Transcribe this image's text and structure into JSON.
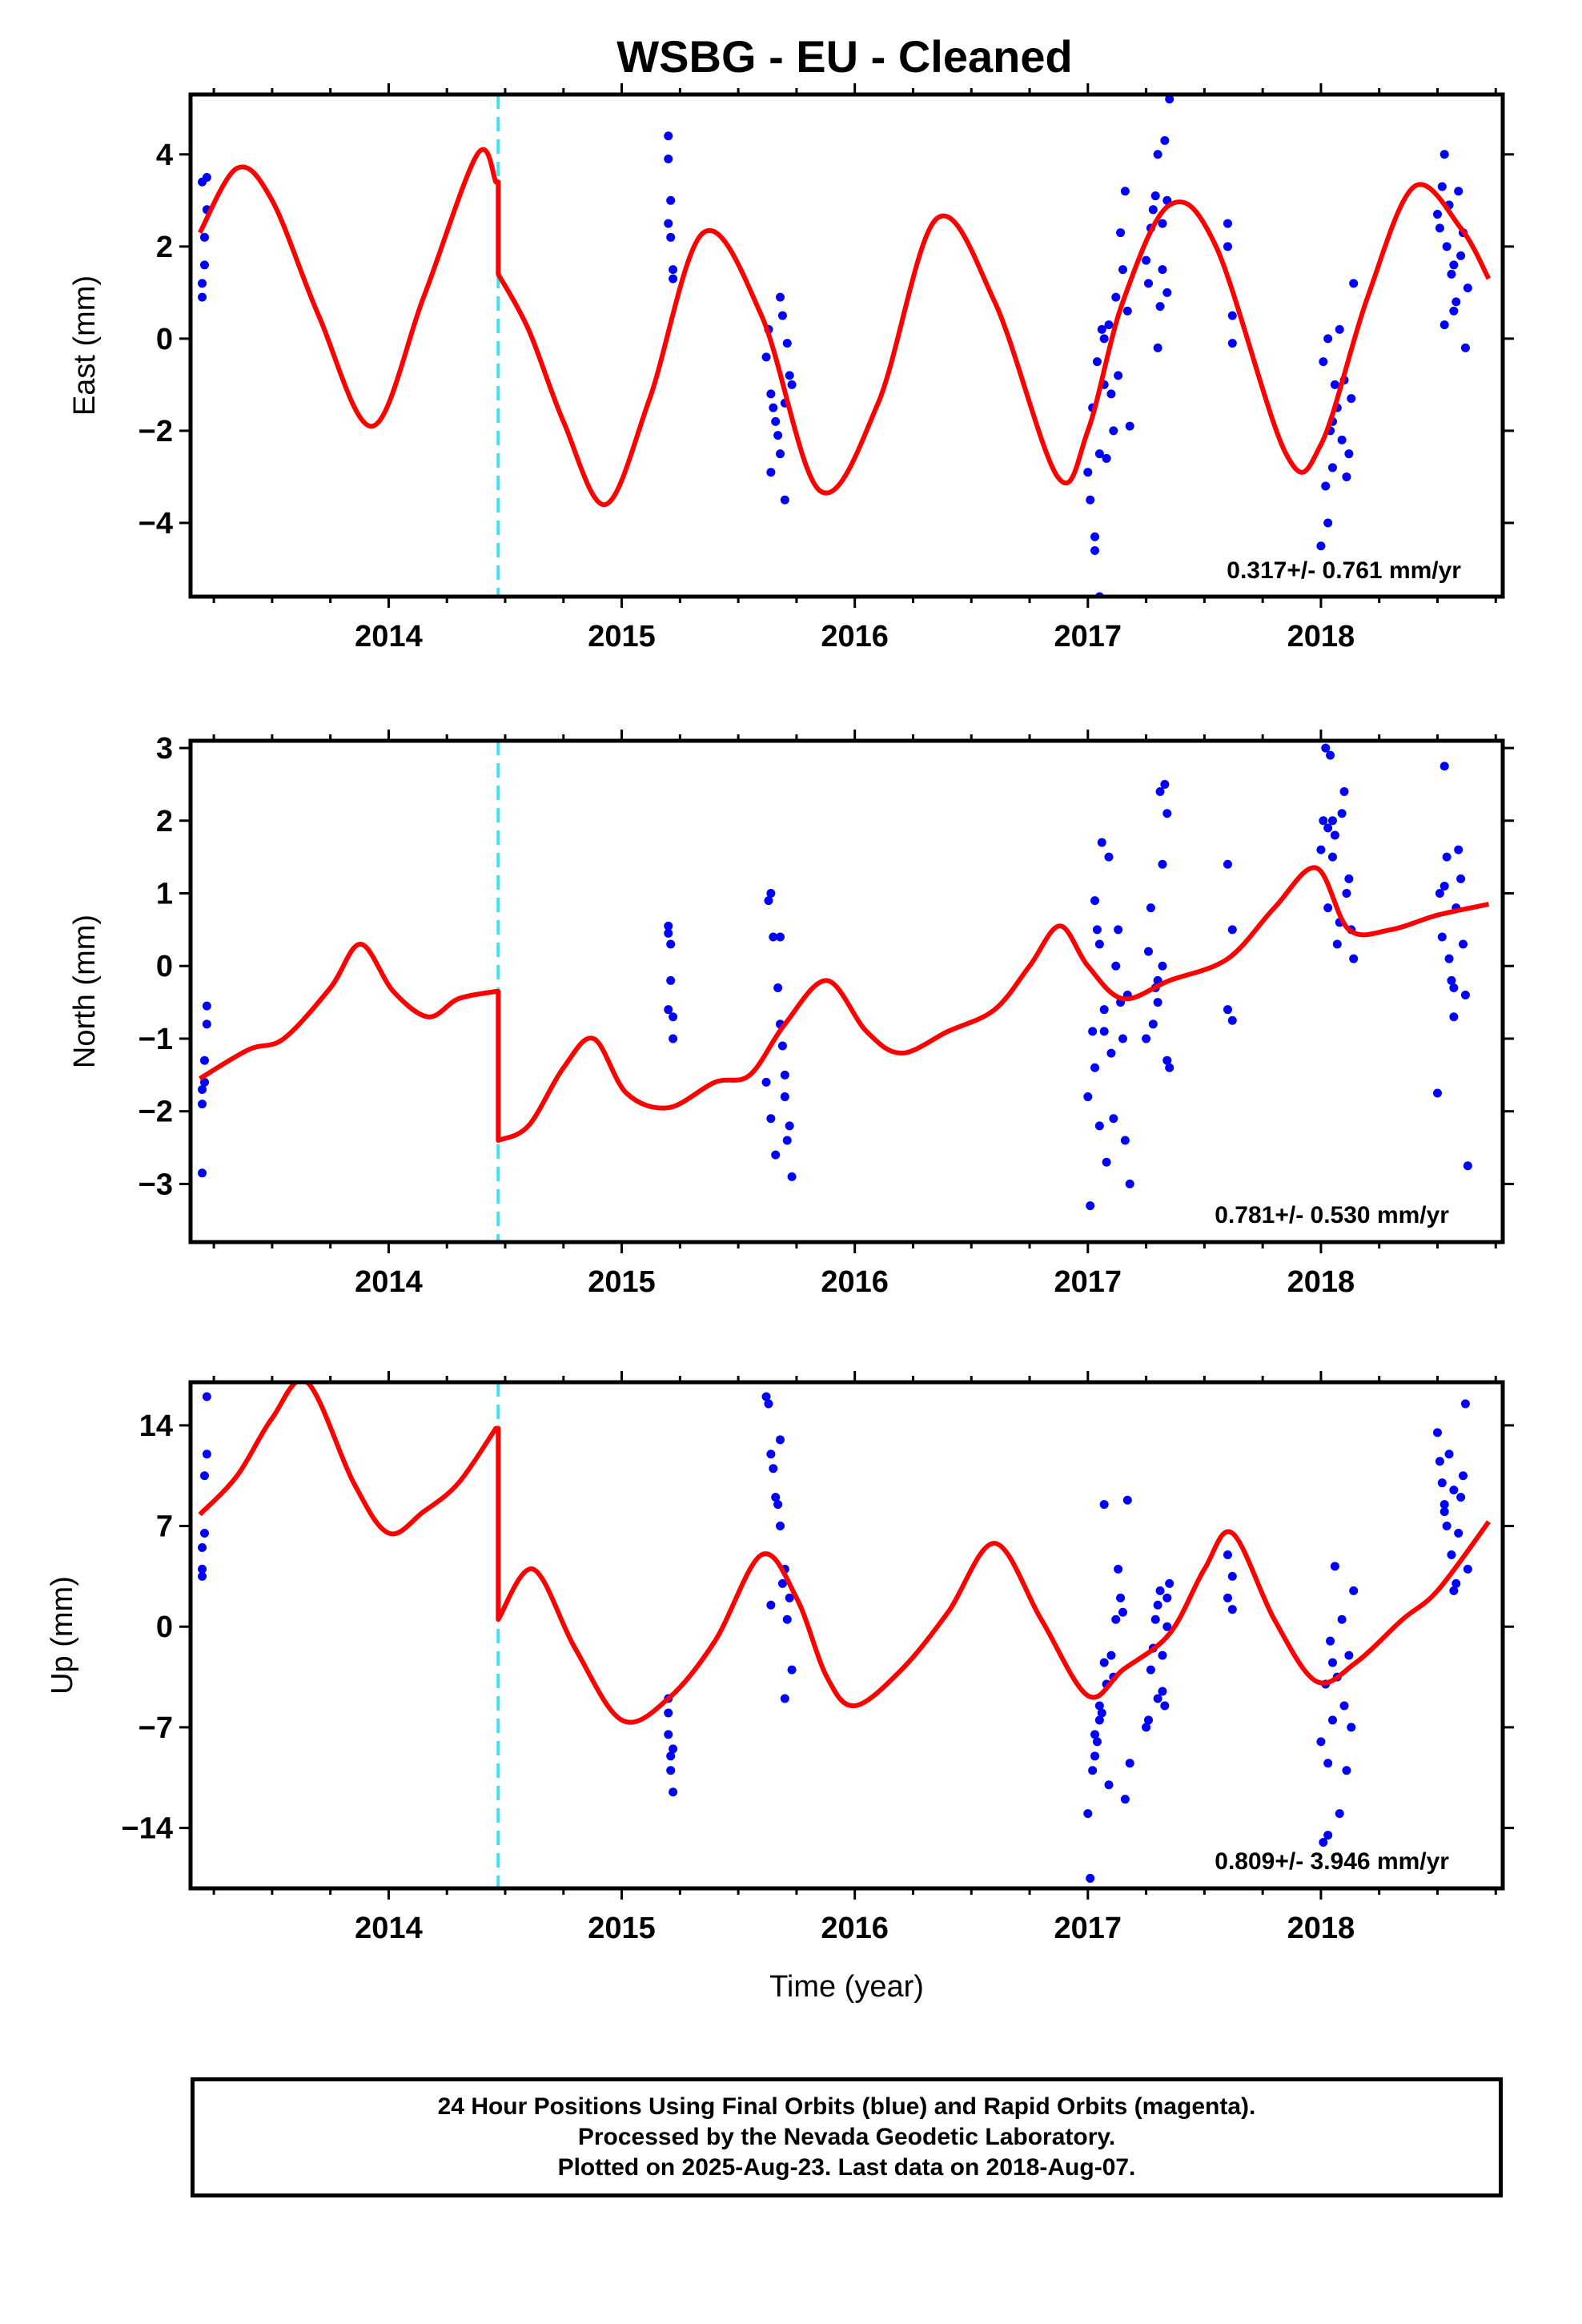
{
  "title": "WSBG  - EU - Cleaned",
  "footer": {
    "line1": "24 Hour Positions Using Final Orbits (blue) and Rapid Orbits (magenta).",
    "line2": "Processed by the Nevada Geodetic Laboratory.",
    "line3": "Plotted on 2025-Aug-23. Last data on 2018-Aug-07."
  },
  "colors": {
    "data": "#0000ff",
    "model": "#ff0000",
    "break": "#3fe0f0",
    "frame": "#000000"
  },
  "chart_data": [
    {
      "type": "scatter",
      "ylabel": "East (mm)",
      "xlabel": "",
      "rate": "0.317+/- 0.761 mm/yr",
      "xlim": [
        2013.15,
        2018.78
      ],
      "ylim": [
        -5.6,
        5.3
      ],
      "yticks": [
        4,
        2,
        0,
        -2,
        -4
      ],
      "ytick_labels": [
        "4",
        "2",
        "0",
        "−2",
        "−4"
      ],
      "xticks": [
        2014,
        2015,
        2016,
        2017,
        2018
      ],
      "break_year": 2014.47,
      "model": {
        "name": "",
        "x": [
          2013.19,
          2013.35,
          2013.5,
          2013.7,
          2013.93,
          2014.15,
          2014.38,
          2014.46,
          2014.47,
          2014.6,
          2014.75,
          2014.93,
          2015.12,
          2015.35,
          2015.6,
          2015.85,
          2016.1,
          2016.35,
          2016.6,
          2016.87,
          2017.0,
          2017.15,
          2017.35,
          2017.55,
          2017.85,
          2018.0,
          2018.2,
          2018.4,
          2018.6,
          2018.72
        ],
        "y": [
          2.3,
          3.7,
          3.0,
          0.5,
          -1.9,
          0.9,
          4.0,
          3.4,
          1.4,
          0.2,
          -1.8,
          -3.6,
          -1.3,
          2.3,
          0.5,
          -3.3,
          -1.4,
          2.6,
          0.8,
          -3.0,
          -2.0,
          0.8,
          2.9,
          2.0,
          -2.5,
          -2.3,
          0.9,
          3.3,
          2.4,
          1.3
        ]
      },
      "points": {
        "name": "",
        "x": [
          2013.2,
          2013.2,
          2013.21,
          2013.21,
          2013.22,
          2013.22,
          2013.2,
          2015.2,
          2015.2,
          2015.21,
          2015.21,
          2015.22,
          2015.22,
          2015.2,
          2015.62,
          2015.64,
          2015.66,
          2015.68,
          2015.7,
          2015.72,
          2015.63,
          2015.65,
          2015.67,
          2015.69,
          2015.71,
          2015.73,
          2015.64,
          2015.68,
          2015.7,
          2017.0,
          2017.02,
          2017.04,
          2017.06,
          2017.08,
          2017.1,
          2017.12,
          2017.14,
          2017.16,
          2017.18,
          2017.01,
          2017.03,
          2017.05,
          2017.07,
          2017.09,
          2017.11,
          2017.13,
          2017.15,
          2017.17,
          2017.03,
          2017.05,
          2017.07,
          2017.25,
          2017.27,
          2017.29,
          2017.31,
          2017.33,
          2017.35,
          2017.26,
          2017.28,
          2017.3,
          2017.32,
          2017.34,
          2017.3,
          2017.32,
          2017.34,
          2017.6,
          2017.6,
          2017.62,
          2017.62,
          2018.0,
          2018.02,
          2018.04,
          2018.06,
          2018.08,
          2018.1,
          2018.12,
          2018.14,
          2018.01,
          2018.03,
          2018.05,
          2018.07,
          2018.09,
          2018.11,
          2018.13,
          2018.03,
          2018.05,
          2018.5,
          2018.52,
          2018.54,
          2018.56,
          2018.58,
          2018.6,
          2018.62,
          2018.51,
          2018.53,
          2018.55,
          2018.57,
          2018.59,
          2018.61,
          2018.63,
          2018.53,
          2018.57
        ],
        "y": [
          0.9,
          1.2,
          1.6,
          2.2,
          2.8,
          3.5,
          3.4,
          4.4,
          3.9,
          3.0,
          2.2,
          1.5,
          1.3,
          2.5,
          -0.4,
          -1.2,
          -1.8,
          -2.5,
          -3.5,
          -0.8,
          0.2,
          -1.5,
          -2.1,
          0.5,
          -0.1,
          -1.0,
          -2.9,
          0.9,
          -1.4,
          -2.9,
          -1.5,
          -0.5,
          0.2,
          -2.6,
          -1.2,
          0.9,
          2.3,
          3.2,
          -1.9,
          -3.5,
          -4.6,
          -5.6,
          -1.0,
          0.3,
          -2.0,
          -0.8,
          1.5,
          0.6,
          -4.3,
          -2.5,
          0.0,
          1.7,
          2.4,
          3.1,
          0.7,
          4.3,
          5.2,
          1.2,
          2.8,
          -0.2,
          1.5,
          3.0,
          4.0,
          2.5,
          1.0,
          2.5,
          2.0,
          0.5,
          -0.1,
          -4.5,
          -3.2,
          -2.0,
          -1.0,
          0.2,
          -0.9,
          -2.5,
          1.2,
          -0.5,
          -4.0,
          -2.8,
          -1.5,
          -2.2,
          -3.0,
          -1.3,
          0.0,
          -1.8,
          2.7,
          3.3,
          2.0,
          1.4,
          0.8,
          1.8,
          -0.2,
          2.4,
          4.0,
          2.9,
          1.6,
          3.2,
          2.3,
          1.1,
          0.3,
          0.6
        ],
        "color": "#0000ff"
      }
    },
    {
      "type": "scatter",
      "ylabel": "North (mm)",
      "xlabel": "",
      "rate": "0.781+/- 0.530 mm/yr",
      "xlim": [
        2013.15,
        2018.78
      ],
      "ylim": [
        -3.8,
        3.1
      ],
      "yticks": [
        3,
        2,
        1,
        0,
        -1,
        -2,
        -3
      ],
      "ytick_labels": [
        "3",
        "2",
        "1",
        "0",
        "−1",
        "−2",
        "−3"
      ],
      "xticks": [
        2014,
        2015,
        2016,
        2017,
        2018
      ],
      "break_year": 2014.47,
      "model": {
        "name": "",
        "x": [
          2013.19,
          2013.4,
          2013.55,
          2013.75,
          2013.88,
          2014.02,
          2014.17,
          2014.3,
          2014.46,
          2014.47,
          2014.6,
          2014.75,
          2014.88,
          2015.02,
          2015.2,
          2015.4,
          2015.55,
          2015.7,
          2015.88,
          2016.05,
          2016.2,
          2016.4,
          2016.6,
          2016.75,
          2016.88,
          2017.0,
          2017.15,
          2017.35,
          2017.6,
          2017.8,
          2017.98,
          2018.12,
          2018.3,
          2018.5,
          2018.72
        ],
        "y": [
          -1.55,
          -1.15,
          -1.0,
          -0.3,
          0.3,
          -0.35,
          -0.7,
          -0.45,
          -0.35,
          -2.4,
          -2.2,
          -1.4,
          -1.0,
          -1.75,
          -1.95,
          -1.6,
          -1.5,
          -0.8,
          -0.2,
          -0.9,
          -1.2,
          -0.9,
          -0.6,
          0.0,
          0.55,
          0.0,
          -0.45,
          -0.2,
          0.1,
          0.8,
          1.35,
          0.5,
          0.5,
          0.7,
          0.85
        ]
      },
      "points": {
        "name": "",
        "x": [
          2013.2,
          2013.2,
          2013.21,
          2013.21,
          2013.22,
          2013.22,
          2013.2,
          2015.2,
          2015.2,
          2015.21,
          2015.21,
          2015.22,
          2015.22,
          2015.2,
          2015.62,
          2015.64,
          2015.66,
          2015.68,
          2015.7,
          2015.72,
          2015.63,
          2015.65,
          2015.67,
          2015.69,
          2015.71,
          2015.73,
          2015.64,
          2015.68,
          2015.7,
          2017.0,
          2017.02,
          2017.04,
          2017.06,
          2017.08,
          2017.1,
          2017.12,
          2017.14,
          2017.16,
          2017.18,
          2017.01,
          2017.03,
          2017.05,
          2017.07,
          2017.09,
          2017.11,
          2017.13,
          2017.15,
          2017.17,
          2017.03,
          2017.05,
          2017.07,
          2017.25,
          2017.27,
          2017.29,
          2017.31,
          2017.33,
          2017.35,
          2017.26,
          2017.28,
          2017.3,
          2017.32,
          2017.34,
          2017.3,
          2017.32,
          2017.34,
          2017.6,
          2017.6,
          2017.62,
          2017.62,
          2018.0,
          2018.02,
          2018.04,
          2018.06,
          2018.08,
          2018.1,
          2018.12,
          2018.14,
          2018.01,
          2018.03,
          2018.05,
          2018.07,
          2018.09,
          2018.11,
          2018.13,
          2018.03,
          2018.05,
          2018.5,
          2018.52,
          2018.54,
          2018.56,
          2018.58,
          2018.6,
          2018.62,
          2018.51,
          2018.53,
          2018.55,
          2018.57,
          2018.59,
          2018.61,
          2018.63,
          2018.53,
          2018.57
        ],
        "y": [
          -2.85,
          -1.9,
          -1.6,
          -1.3,
          -0.8,
          -0.55,
          -1.7,
          0.55,
          0.45,
          0.3,
          -0.2,
          -0.7,
          -1.0,
          -0.6,
          -1.6,
          -2.1,
          -2.6,
          -0.8,
          -1.8,
          -2.2,
          0.9,
          0.4,
          -0.3,
          -1.1,
          -2.4,
          -2.9,
          1.0,
          0.4,
          -1.5,
          -1.8,
          -0.9,
          0.5,
          1.7,
          -2.7,
          -1.2,
          0.0,
          -0.5,
          -2.4,
          -3.0,
          -3.3,
          -1.4,
          0.3,
          -0.9,
          1.5,
          -2.1,
          0.5,
          -1.0,
          -0.4,
          0.9,
          -2.2,
          -0.6,
          -1.0,
          0.8,
          -0.3,
          2.4,
          2.5,
          -1.4,
          0.2,
          -0.8,
          -0.5,
          1.4,
          -1.3,
          -0.2,
          0.0,
          2.1,
          -0.6,
          1.4,
          0.5,
          -0.75,
          1.6,
          3.0,
          2.9,
          1.8,
          0.6,
          2.4,
          1.2,
          0.1,
          2.0,
          0.8,
          1.5,
          0.3,
          2.1,
          1.0,
          0.5,
          1.9,
          2.0,
          -1.75,
          0.4,
          1.5,
          -0.2,
          0.8,
          1.2,
          -0.4,
          1.0,
          2.75,
          0.1,
          -0.7,
          1.6,
          0.3,
          -2.75,
          1.1,
          -0.3
        ],
        "color": "#0000ff"
      }
    },
    {
      "type": "scatter",
      "ylabel": "Up (mm)",
      "xlabel": "Time (year)",
      "rate": "0.809+/- 3.946 mm/yr",
      "xlim": [
        2013.15,
        2018.78
      ],
      "ylim": [
        -18.2,
        17.0
      ],
      "yticks": [
        14,
        7,
        0,
        -7,
        -14
      ],
      "ytick_labels": [
        "14",
        "7",
        "0",
        "−7",
        "−14"
      ],
      "xticks": [
        2014,
        2015,
        2016,
        2017,
        2018
      ],
      "break_year": 2014.47,
      "model": {
        "name": "",
        "x": [
          2013.19,
          2013.35,
          2013.5,
          2013.65,
          2013.85,
          2014.0,
          2014.15,
          2014.3,
          2014.46,
          2014.47,
          2014.62,
          2014.8,
          2015.0,
          2015.2,
          2015.4,
          2015.6,
          2015.75,
          2015.88,
          2016.0,
          2016.2,
          2016.4,
          2016.6,
          2016.8,
          2017.0,
          2017.15,
          2017.35,
          2017.5,
          2017.62,
          2017.8,
          2017.98,
          2018.15,
          2018.35,
          2018.5,
          2018.72
        ],
        "y": [
          7.8,
          10.5,
          14.5,
          17.0,
          10.0,
          6.5,
          8.0,
          10.0,
          13.8,
          0.5,
          4.0,
          -1.5,
          -6.5,
          -5.0,
          -1.0,
          5.0,
          2.0,
          -3.5,
          -5.5,
          -3.0,
          1.0,
          5.8,
          0.5,
          -4.8,
          -3.0,
          -0.5,
          4.0,
          6.5,
          0.5,
          -3.8,
          -2.5,
          0.5,
          2.5,
          7.3
        ]
      },
      "points": {
        "name": "",
        "x": [
          2013.2,
          2013.2,
          2013.21,
          2013.21,
          2013.22,
          2013.22,
          2013.2,
          2015.2,
          2015.2,
          2015.21,
          2015.21,
          2015.22,
          2015.22,
          2015.2,
          2015.62,
          2015.64,
          2015.66,
          2015.68,
          2015.7,
          2015.72,
          2015.63,
          2015.65,
          2015.67,
          2015.69,
          2015.71,
          2015.73,
          2015.64,
          2015.68,
          2015.7,
          2017.0,
          2017.02,
          2017.04,
          2017.06,
          2017.08,
          2017.1,
          2017.12,
          2017.14,
          2017.16,
          2017.18,
          2017.01,
          2017.03,
          2017.05,
          2017.07,
          2017.09,
          2017.11,
          2017.13,
          2017.15,
          2017.17,
          2017.03,
          2017.05,
          2017.07,
          2017.25,
          2017.27,
          2017.29,
          2017.31,
          2017.33,
          2017.35,
          2017.26,
          2017.28,
          2017.3,
          2017.32,
          2017.34,
          2017.3,
          2017.32,
          2017.34,
          2017.6,
          2017.6,
          2017.62,
          2017.62,
          2018.0,
          2018.02,
          2018.04,
          2018.06,
          2018.08,
          2018.1,
          2018.12,
          2018.14,
          2018.01,
          2018.03,
          2018.05,
          2018.07,
          2018.09,
          2018.11,
          2018.13,
          2018.03,
          2018.05,
          2018.5,
          2018.52,
          2018.54,
          2018.56,
          2018.58,
          2018.6,
          2018.62,
          2018.51,
          2018.53,
          2018.55,
          2018.57,
          2018.59,
          2018.61,
          2018.63,
          2018.53,
          2018.57
        ],
        "y": [
          4.0,
          5.5,
          6.5,
          10.5,
          12.0,
          16.0,
          3.5,
          -5.0,
          -7.5,
          -9.0,
          -10.0,
          -11.5,
          -8.5,
          -6.0,
          16.0,
          12.0,
          9.0,
          7.0,
          4.0,
          2.0,
          15.5,
          11.0,
          8.5,
          3.0,
          0.5,
          -3.0,
          1.5,
          13.0,
          -5.0,
          -13.0,
          -10.0,
          -8.0,
          -6.0,
          -4.0,
          -2.0,
          0.5,
          2.0,
          -12.0,
          -9.5,
          -17.5,
          -7.5,
          -5.5,
          8.5,
          -11.0,
          -3.5,
          4.0,
          1.0,
          8.8,
          -9.0,
          -6.5,
          -2.5,
          -7.0,
          -3.0,
          0.5,
          2.5,
          -5.5,
          3.0,
          -6.5,
          -1.5,
          1.5,
          -4.5,
          0.0,
          -5.0,
          -2.0,
          2.0,
          2.0,
          5.0,
          3.5,
          1.2,
          -8.0,
          -4.0,
          -1.0,
          4.2,
          -13.0,
          -5.5,
          -2.0,
          2.5,
          -15.0,
          -9.5,
          -6.5,
          -3.5,
          0.5,
          -10.0,
          -7.0,
          -14.5,
          -2.5,
          13.5,
          10.0,
          7.0,
          5.0,
          3.0,
          9.0,
          15.5,
          11.5,
          8.5,
          12.0,
          2.5,
          6.5,
          10.5,
          4.0,
          8.0,
          9.5
        ],
        "color": "#0000ff"
      }
    }
  ]
}
